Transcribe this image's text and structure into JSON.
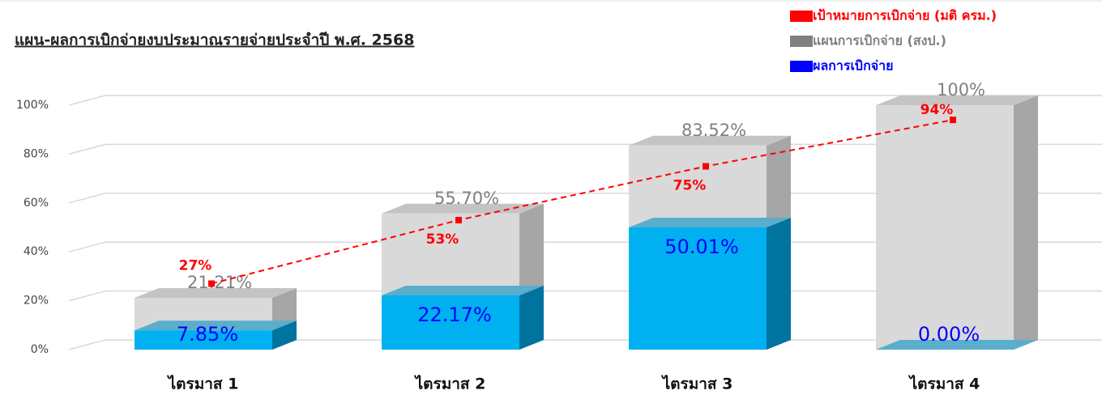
{
  "chart_data": {
    "type": "bar3d",
    "title": "แผน-ผลการเบิกจ่ายงบประมาณรายจ่ายประจำปี พ.ศ. 2568",
    "categories": [
      "ไตรมาส 1",
      "ไตรมาส 2",
      "ไตรมาส 3",
      "ไตรมาส 4"
    ],
    "series": [
      {
        "name": "เป้าหมายการเบิกจ่าย (มติ ครม.)",
        "color": "#ff0000",
        "type": "line",
        "values": [
          27,
          53,
          75,
          94
        ],
        "value_labels": [
          "27%",
          "53%",
          "75%",
          "94%"
        ]
      },
      {
        "name": "แผนการเบิกจ่าย (สงป.)",
        "color": "#808080",
        "type": "bar",
        "values": [
          21.21,
          55.7,
          83.52,
          100
        ],
        "value_labels": [
          "21.21%",
          "55.70%",
          "83.52%",
          "100%"
        ]
      },
      {
        "name": "ผลการเบิกจ่าย",
        "color": "#0000ff",
        "type": "bar",
        "values": [
          7.85,
          22.17,
          50.01,
          0.0
        ],
        "value_labels": [
          "7.85%",
          "22.17%",
          "50.01%",
          "0.00%"
        ]
      }
    ],
    "ylim": [
      0,
      100
    ],
    "yticks": [
      {
        "value": 0,
        "label": "0%"
      },
      {
        "value": 20,
        "label": "20%"
      },
      {
        "value": 40,
        "label": "40%"
      },
      {
        "value": 60,
        "label": "60%"
      },
      {
        "value": 80,
        "label": "80%"
      },
      {
        "value": 100,
        "label": "100%"
      }
    ],
    "grid": true
  }
}
